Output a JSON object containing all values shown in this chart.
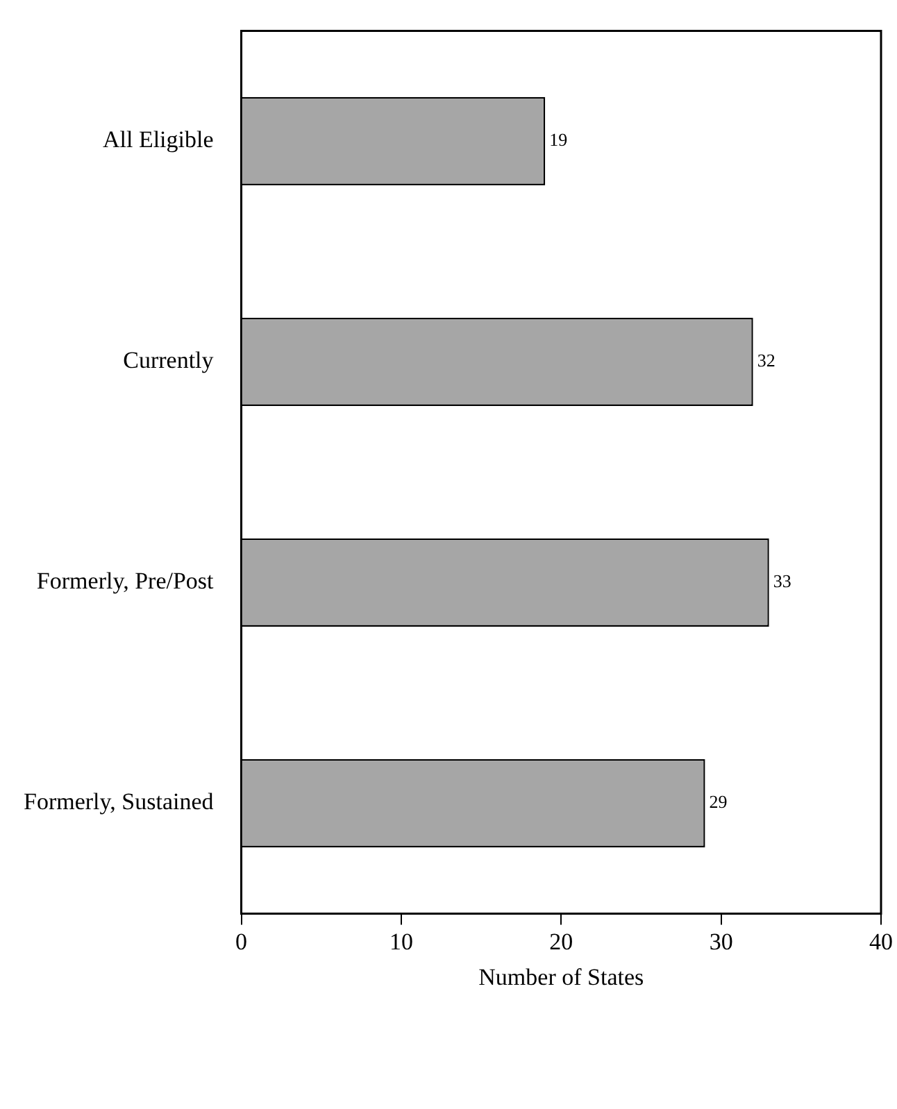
{
  "chart_data": {
    "type": "bar",
    "orientation": "horizontal",
    "xlabel": "Number of States",
    "categories": [
      "All Eligible",
      "Currently",
      "Formerly, Pre/Post",
      "Formerly, Sustained"
    ],
    "values": [
      19,
      32,
      33,
      29
    ],
    "color": "#a6a6a6",
    "data_labels": true,
    "xlim": [
      0,
      40
    ],
    "xticks": [
      0,
      10,
      20,
      30,
      40
    ],
    "grid": false,
    "legend": false
  }
}
